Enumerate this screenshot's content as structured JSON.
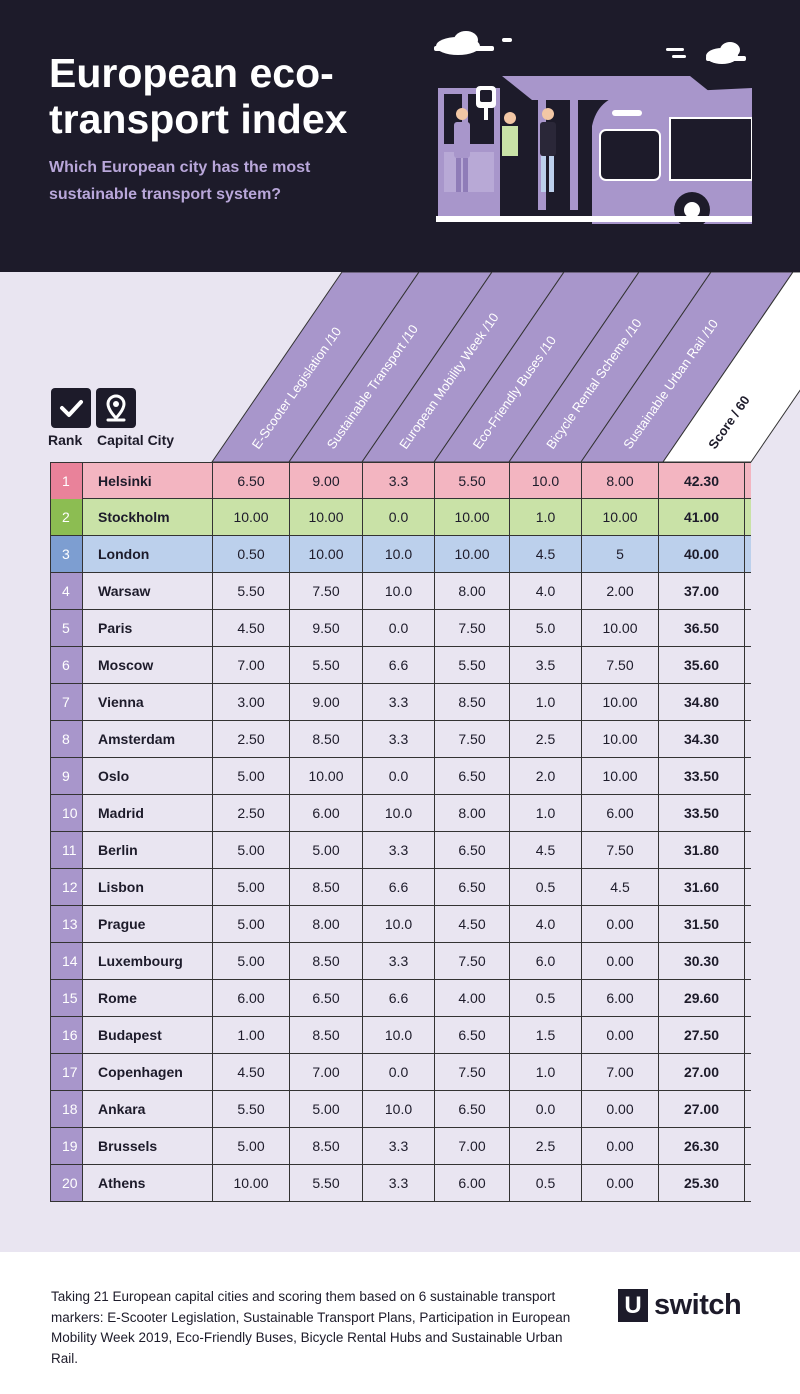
{
  "header": {
    "title": "European eco-transport index",
    "subtitle": "Which European city has the most sustainable transport system?"
  },
  "chart_data": {
    "type": "table",
    "columns": {
      "rank": "Rank",
      "city": "Capital City",
      "metrics": [
        "E-Scooter Legislation /10",
        "Sustainable Transport /10",
        "European Mobility Week /10",
        "Eco-Friendly Buses /10",
        "Bicycle Rental Scheme /10",
        "Sustainable Urban Rail /10"
      ],
      "score": "Score / 60"
    },
    "rows": [
      {
        "rank": "1",
        "city": "Helsinki",
        "values": [
          "6.50",
          "9.00",
          "3.3",
          "5.50",
          "10.0",
          "8.00"
        ],
        "score": "42.30",
        "color": "#f3b5c1"
      },
      {
        "rank": "2",
        "city": "Stockholm",
        "values": [
          "10.00",
          "10.00",
          "0.0",
          "10.00",
          "1.0",
          "10.00"
        ],
        "score": "41.00",
        "color": "#c9e2a7"
      },
      {
        "rank": "3",
        "city": "London",
        "values": [
          "0.50",
          "10.00",
          "10.0",
          "10.00",
          "4.5",
          "5"
        ],
        "score": "40.00",
        "color": "#bcd0ec"
      },
      {
        "rank": "4",
        "city": "Warsaw",
        "values": [
          "5.50",
          "7.50",
          "10.0",
          "8.00",
          "4.0",
          "2.00"
        ],
        "score": "37.00",
        "color": ""
      },
      {
        "rank": "5",
        "city": "Paris",
        "values": [
          "4.50",
          "9.50",
          "0.0",
          "7.50",
          "5.0",
          "10.00"
        ],
        "score": "36.50",
        "color": ""
      },
      {
        "rank": "6",
        "city": "Moscow",
        "values": [
          "7.00",
          "5.50",
          "6.6",
          "5.50",
          "3.5",
          "7.50"
        ],
        "score": "35.60",
        "color": ""
      },
      {
        "rank": "7",
        "city": "Vienna",
        "values": [
          "3.00",
          "9.00",
          "3.3",
          "8.50",
          "1.0",
          "10.00"
        ],
        "score": "34.80",
        "color": ""
      },
      {
        "rank": "8",
        "city": "Amsterdam",
        "values": [
          "2.50",
          "8.50",
          "3.3",
          "7.50",
          "2.5",
          "10.00"
        ],
        "score": "34.30",
        "color": ""
      },
      {
        "rank": "9",
        "city": "Oslo",
        "values": [
          "5.00",
          "10.00",
          "0.0",
          "6.50",
          "2.0",
          "10.00"
        ],
        "score": "33.50",
        "color": ""
      },
      {
        "rank": "10",
        "city": "Madrid",
        "values": [
          "2.50",
          "6.00",
          "10.0",
          "8.00",
          "1.0",
          "6.00"
        ],
        "score": "33.50",
        "color": ""
      },
      {
        "rank": "11",
        "city": "Berlin",
        "values": [
          "5.00",
          "5.00",
          "3.3",
          "6.50",
          "4.5",
          "7.50"
        ],
        "score": "31.80",
        "color": ""
      },
      {
        "rank": "12",
        "city": "Lisbon",
        "values": [
          "5.00",
          "8.50",
          "6.6",
          "6.50",
          "0.5",
          "4.5"
        ],
        "score": "31.60",
        "color": ""
      },
      {
        "rank": "13",
        "city": "Prague",
        "values": [
          "5.00",
          "8.00",
          "10.0",
          "4.50",
          "4.0",
          "0.00"
        ],
        "score": "31.50",
        "color": ""
      },
      {
        "rank": "14",
        "city": "Luxembourg",
        "values": [
          "5.00",
          "8.50",
          "3.3",
          "7.50",
          "6.0",
          "0.00"
        ],
        "score": "30.30",
        "color": ""
      },
      {
        "rank": "15",
        "city": "Rome",
        "values": [
          "6.00",
          "6.50",
          "6.6",
          "4.00",
          "0.5",
          "6.00"
        ],
        "score": "29.60",
        "color": ""
      },
      {
        "rank": "16",
        "city": "Budapest",
        "values": [
          "1.00",
          "8.50",
          "10.0",
          "6.50",
          "1.5",
          "0.00"
        ],
        "score": "27.50",
        "color": ""
      },
      {
        "rank": "17",
        "city": "Copenhagen",
        "values": [
          "4.50",
          "7.00",
          "0.0",
          "7.50",
          "1.0",
          "7.00"
        ],
        "score": "27.00",
        "color": ""
      },
      {
        "rank": "18",
        "city": "Ankara",
        "values": [
          "5.50",
          "5.00",
          "10.0",
          "6.50",
          "0.0",
          "0.00"
        ],
        "score": "27.00",
        "color": ""
      },
      {
        "rank": "19",
        "city": "Brussels",
        "values": [
          "5.00",
          "8.50",
          "3.3",
          "7.00",
          "2.5",
          "0.00"
        ],
        "score": "26.30",
        "color": ""
      },
      {
        "rank": "20",
        "city": "Athens",
        "values": [
          "10.00",
          "5.50",
          "3.3",
          "6.00",
          "0.5",
          "0.00"
        ],
        "score": "25.30",
        "color": ""
      }
    ]
  },
  "colors": {
    "dark": "#1d1b2a",
    "purple": "#a896cb",
    "purple_dark": "#8f7cb8",
    "row_default": "#e9e5f1",
    "rank_default": "#a896cb"
  },
  "icons": {
    "rank": "checkmark-icon",
    "city": "location-pin-icon"
  },
  "footer": {
    "text": "Taking 21 European capital cities and scoring them based on 6 sustainable transport markers: E-Scooter Legislation, Sustainable Transport Plans, Participation in European Mobility Week 2019, Eco-Friendly Buses, Bicycle Rental Hubs and Sustainable Urban Rail.",
    "logo_mark": "U",
    "logo_text": "switch"
  }
}
